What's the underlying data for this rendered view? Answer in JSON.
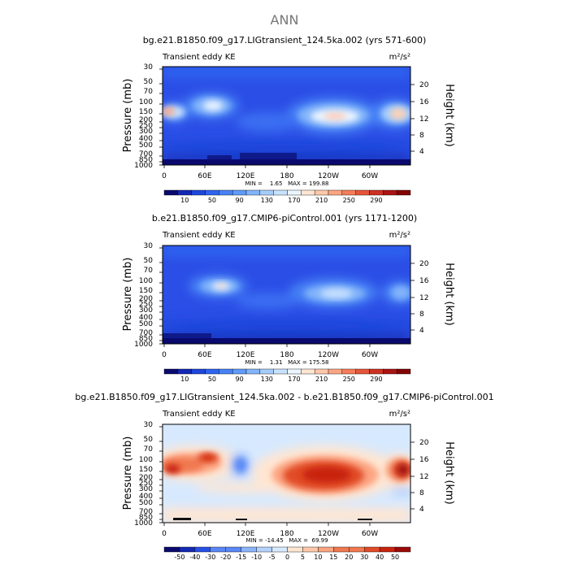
{
  "figure_title": "ANN",
  "colors": {
    "ke_palette": [
      "#0a0a6e",
      "#1428b4",
      "#1e46dc",
      "#2d64f0",
      "#4682f5",
      "#5f9bf8",
      "#82b4fa",
      "#a5cdfc",
      "#c8e1fe",
      "#ebf5ff",
      "#ffe6d2",
      "#ffc8aa",
      "#fca582",
      "#f57d5a",
      "#e6553a",
      "#cd3223",
      "#aa1414",
      "#820505"
    ],
    "diff_palette": [
      "#0a0a6e",
      "#1428b4",
      "#2850e6",
      "#5a87f5",
      "#8cb4fa",
      "#b4d2fc",
      "#d7e9fe",
      "#ffe6d2",
      "#fcc8aa",
      "#f9a582",
      "#f07850",
      "#e14b28",
      "#c8230f",
      "#9b0a0a"
    ]
  },
  "chart_data": [
    {
      "type": "heatmap",
      "title": "bg.e21.B1850.f09_g17.LIGtransient_124.5ka.002 (yrs 571-600)",
      "left_label": "Transient eddy KE",
      "units": "m²/s²",
      "ylabel": "Pressure (mb)",
      "y2label": "Height (km)",
      "x_ticks": [
        "0",
        "60E",
        "120E",
        "180",
        "120W",
        "60W"
      ],
      "y_ticks": [
        "30",
        "50",
        "70",
        "100",
        "150",
        "200",
        "250",
        "300",
        "400",
        "500",
        "700",
        "850",
        "1000"
      ],
      "y2_ticks": [
        "20",
        "16",
        "12",
        "8",
        "4"
      ],
      "stats": "MIN =    1.65   MAX = 199.88",
      "min": 1.65,
      "max": 199.88,
      "colorbar_labels": [
        "10",
        "50",
        "90",
        "130",
        "170",
        "210",
        "250",
        "290"
      ],
      "levels": [
        10,
        30,
        50,
        70,
        90,
        110,
        130,
        150,
        170,
        190,
        210,
        230,
        250,
        270,
        290
      ]
    },
    {
      "type": "heatmap",
      "title": "b.e21.B1850.f09_g17.CMIP6-piControl.001 (yrs 1171-1200)",
      "left_label": "Transient eddy KE",
      "units": "m²/s²",
      "ylabel": "Pressure (mb)",
      "y2label": "Height (km)",
      "x_ticks": [
        "0",
        "60E",
        "120E",
        "180",
        "120W",
        "60W"
      ],
      "y_ticks": [
        "30",
        "50",
        "70",
        "100",
        "150",
        "200",
        "250",
        "300",
        "400",
        "500",
        "700",
        "850",
        "1000"
      ],
      "y2_ticks": [
        "20",
        "16",
        "12",
        "8",
        "4"
      ],
      "stats": "MIN =    1.31   MAX = 175.58",
      "min": 1.31,
      "max": 175.58,
      "colorbar_labels": [
        "10",
        "50",
        "90",
        "130",
        "170",
        "210",
        "250",
        "290"
      ],
      "levels": [
        10,
        30,
        50,
        70,
        90,
        110,
        130,
        150,
        170,
        190,
        210,
        230,
        250,
        270,
        290
      ]
    },
    {
      "type": "heatmap",
      "title": "bg.e21.B1850.f09_g17.LIGtransient_124.5ka.002 - b.e21.B1850.f09_g17.CMIP6-piControl.001",
      "left_label": "Transient eddy KE",
      "units": "m²/s²",
      "ylabel": "Pressure (mb)",
      "y2label": "Height (km)",
      "x_ticks": [
        "0",
        "60E",
        "120E",
        "180",
        "120W",
        "60W"
      ],
      "y_ticks": [
        "30",
        "50",
        "70",
        "100",
        "150",
        "200",
        "250",
        "300",
        "400",
        "500",
        "700",
        "850",
        "1000"
      ],
      "y2_ticks": [
        "20",
        "16",
        "12",
        "8",
        "4"
      ],
      "stats": "MIN = -14.45   MAX =  69.99",
      "min": -14.45,
      "max": 69.99,
      "colorbar_labels": [
        "-50",
        "-40",
        "-30",
        "-20",
        "-15",
        "-10",
        "-5",
        "0",
        "5",
        "10",
        "15",
        "20",
        "30",
        "40",
        "50"
      ],
      "levels": [
        -50,
        -40,
        -30,
        -20,
        -15,
        -10,
        -5,
        0,
        5,
        10,
        15,
        20,
        30,
        40,
        50
      ]
    }
  ]
}
